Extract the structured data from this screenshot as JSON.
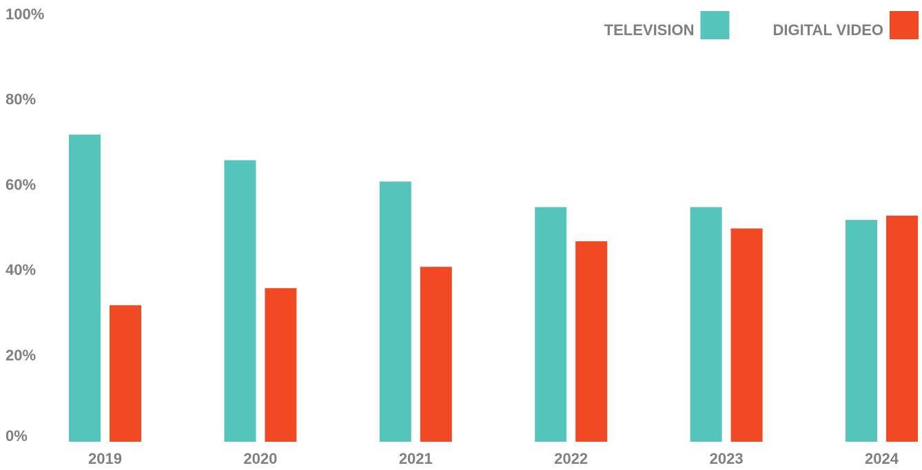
{
  "chart_data": {
    "type": "bar",
    "categories": [
      "2019",
      "2020",
      "2021",
      "2022",
      "2023",
      "2024"
    ],
    "series": [
      {
        "name": "TELEVISION",
        "color": "#55c4bb",
        "values": [
          72,
          66,
          61,
          55,
          55,
          52
        ]
      },
      {
        "name": "DIGITAL VIDEO",
        "color": "#f04923",
        "values": [
          32,
          36,
          41,
          47,
          50,
          53
        ]
      }
    ],
    "ylim": [
      0,
      100
    ],
    "yticks": [
      {
        "value": 0,
        "label": "0%"
      },
      {
        "value": 20,
        "label": "20%"
      },
      {
        "value": 40,
        "label": "40%"
      },
      {
        "value": 60,
        "label": "60%"
      },
      {
        "value": 80,
        "label": "80%"
      },
      {
        "value": 100,
        "label": "100%"
      }
    ],
    "grid": false,
    "legend": "top-right"
  }
}
